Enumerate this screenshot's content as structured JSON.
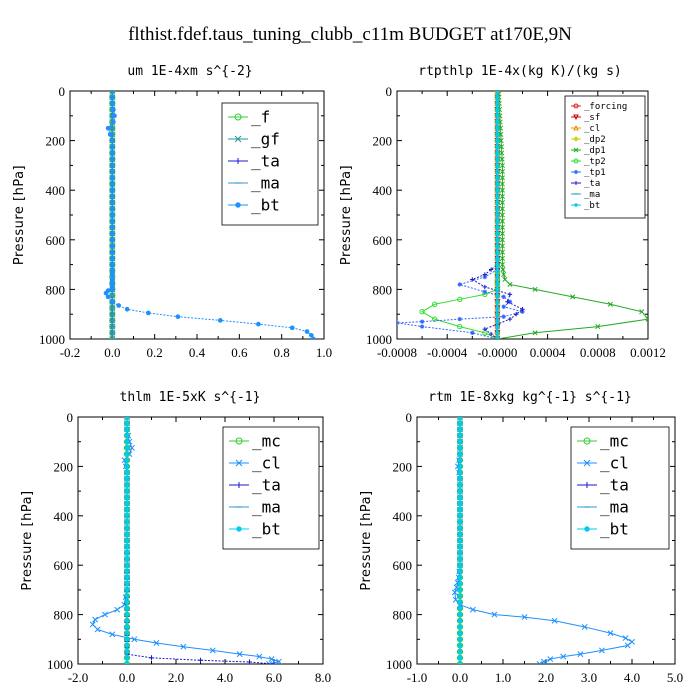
{
  "title": "flthist.fdef.taus_tuning_clubb_c11m  BUDGET at170E,9N",
  "chart_data": [
    {
      "type": "line",
      "title": "um  1E-4xm s^{-2}",
      "ylabel": "Pressure [hPa]",
      "xlim": [
        -0.2,
        1.0
      ],
      "ylim": [
        0,
        1000
      ],
      "xticks": [
        "-0.2",
        "0.0",
        "0.2",
        "0.4",
        "0.6",
        "0.8",
        "1.0"
      ],
      "xtick_values": [
        -0.2,
        0.0,
        0.2,
        0.4,
        0.6,
        0.8,
        1.0
      ],
      "yticks": [
        "0",
        "200",
        "400",
        "600",
        "800",
        "1000"
      ],
      "ytick_values": [
        0,
        200,
        400,
        600,
        800,
        1000
      ],
      "legend_position": "top-right",
      "series": [
        {
          "name": "_f",
          "color": "#33cc33",
          "marker": "circle",
          "x": [
            0.0,
            0.0,
            0.0,
            0.0,
            0.0,
            0.0,
            0.0
          ],
          "y": [
            0,
            200,
            400,
            600,
            800,
            900,
            1000
          ]
        },
        {
          "name": "_gf",
          "color": "#229999",
          "marker": "cross",
          "x": [
            0.0,
            0.0,
            0.0,
            0.0,
            0.0,
            0.0,
            0.0
          ],
          "y": [
            0,
            200,
            400,
            600,
            800,
            900,
            1000
          ]
        },
        {
          "name": "_ta",
          "color": "#1a1acc",
          "marker": "plus",
          "x": [
            0.0,
            0.0,
            0.0,
            0.0,
            0.0,
            0.0,
            0.0
          ],
          "y": [
            0,
            200,
            400,
            600,
            800,
            900,
            1000
          ]
        },
        {
          "name": "_ma",
          "color": "#3399cc",
          "marker": "dash",
          "x": [
            0.0,
            0.0,
            0.0,
            0.0,
            0.0,
            0.0,
            0.0
          ],
          "y": [
            0,
            200,
            400,
            600,
            800,
            900,
            1000
          ]
        },
        {
          "name": "_bt",
          "color": "#1e90ff",
          "marker": "dot",
          "x": [
            0.0,
            0.0,
            0.0,
            0.005,
            0.01,
            0.005,
            -0.02,
            -0.01,
            0.0,
            0.0,
            0.0,
            0.0,
            0.0,
            0.0,
            0.0,
            0.0,
            0.0,
            0.0,
            0.0,
            0.0,
            0.0,
            0.0,
            0.0,
            0.0,
            0.0,
            0.0,
            0.0,
            -0.02,
            -0.03,
            -0.02,
            0.0,
            0.03,
            0.07,
            0.17,
            0.31,
            0.51,
            0.69,
            0.85,
            0.92,
            0.94,
            0.95
          ],
          "y": [
            0,
            25,
            50,
            75,
            100,
            125,
            150,
            175,
            200,
            225,
            250,
            300,
            350,
            400,
            450,
            500,
            550,
            600,
            650,
            700,
            720,
            740,
            760,
            780,
            790,
            795,
            800,
            805,
            815,
            830,
            850,
            865,
            880,
            895,
            910,
            925,
            940,
            955,
            970,
            985,
            1000
          ]
        }
      ]
    },
    {
      "type": "line",
      "title": "rtpthlp  1E-4x(kg K)/(kg s)",
      "ylabel": "Pressure [hPa]",
      "xlim": [
        -0.0008,
        0.0012
      ],
      "ylim": [
        0,
        1000
      ],
      "xticks": [
        "-0.0008",
        "-0.0004",
        "-0.0000",
        "0.0004",
        "0.0008",
        "0.0012"
      ],
      "xtick_values": [
        -0.0008,
        -0.0004,
        0.0,
        0.0004,
        0.0008,
        0.0012
      ],
      "yticks": [
        "0",
        "200",
        "400",
        "600",
        "800",
        "1000"
      ],
      "ytick_values": [
        0,
        200,
        400,
        600,
        800,
        1000
      ],
      "legend_position": "top-right",
      "series": [
        {
          "name": "_forcing",
          "color": "#e02020",
          "marker": "circle",
          "x": [
            0.0,
            0.0
          ],
          "y": [
            0,
            1000
          ]
        },
        {
          "name": "_sf",
          "color": "#cc0000",
          "marker": "triangle-down",
          "x": [
            0.0,
            0.0
          ],
          "y": [
            0,
            1000
          ]
        },
        {
          "name": "_cl",
          "color": "#dd9900",
          "marker": "triangle-up",
          "x": [
            0.0,
            0.0
          ],
          "y": [
            0,
            1000
          ]
        },
        {
          "name": "_dp2",
          "color": "#cccc00",
          "marker": "diamond",
          "x": [
            0.0,
            0.0
          ],
          "y": [
            0,
            1000
          ]
        },
        {
          "name": "_dp1",
          "color": "#22aa22",
          "marker": "cross",
          "x": [
            1e-05,
            2e-05,
            3e-05,
            4e-05,
            4e-05,
            4e-05,
            4e-05,
            4e-05,
            4e-05,
            4e-05,
            5e-05,
            6e-05,
            0.0001,
            0.0003,
            0.0006,
            0.0009,
            0.00115,
            0.0012,
            0.0008,
            0.0003,
            0.0
          ],
          "y": [
            0,
            100,
            200,
            300,
            400,
            500,
            550,
            600,
            650,
            700,
            740,
            760,
            780,
            800,
            830,
            860,
            890,
            920,
            950,
            975,
            1000
          ]
        },
        {
          "name": "_tp2",
          "color": "#33dd33",
          "marker": "circle",
          "x": [
            0.0,
            0.0,
            0.0,
            0.0,
            0.0,
            0.0,
            -0.0001,
            -0.0003,
            -0.0005,
            -0.0006,
            -0.0005,
            -0.0003,
            -0.0001,
            0.0
          ],
          "y": [
            0,
            200,
            400,
            600,
            760,
            800,
            820,
            840,
            860,
            890,
            920,
            950,
            975,
            1000
          ]
        },
        {
          "name": "_tp1",
          "color": "#3366ff",
          "marker": "star",
          "x": [
            0.0,
            0.0,
            0.0,
            0.0,
            0.0,
            -0.0001,
            -0.0003,
            -0.0001,
            5e-05,
            0.0001,
            5e-05,
            0.0002,
            5e-05,
            -0.0003,
            -0.0006,
            -0.0008,
            -0.0006,
            -0.0002,
            0.0
          ],
          "y": [
            0,
            200,
            400,
            600,
            720,
            750,
            780,
            810,
            830,
            850,
            870,
            890,
            910,
            920,
            930,
            935,
            950,
            975,
            1000
          ]
        },
        {
          "name": "_ta",
          "color": "#1a1acc",
          "marker": "plus",
          "x": [
            0.0,
            0.0,
            0.0,
            0.0,
            -0.0001,
            -0.0002,
            -0.0001,
            0.0001,
            8e-05,
            0.0002,
            0.0001,
            -0.0001,
            0.0
          ],
          "y": [
            0,
            200,
            400,
            700,
            740,
            760,
            790,
            820,
            850,
            880,
            920,
            960,
            1000
          ]
        },
        {
          "name": "_ma",
          "color": "#3399cc",
          "marker": "dash",
          "x": [
            0.0,
            0.0
          ],
          "y": [
            0,
            1000
          ]
        },
        {
          "name": "_bt",
          "color": "#00ccee",
          "marker": "dot",
          "x": [
            0.0,
            0.0
          ],
          "y": [
            0,
            1000
          ]
        }
      ]
    },
    {
      "type": "line",
      "title": "thlm  1E-5xK s^{-1}",
      "ylabel": "Pressure [hPa]",
      "xlim": [
        -2.0,
        8.0
      ],
      "ylim": [
        0,
        1000
      ],
      "xticks": [
        "-2.0",
        "0.0",
        "2.0",
        "4.0",
        "6.0",
        "8.0"
      ],
      "xtick_values": [
        -2.0,
        0.0,
        2.0,
        4.0,
        6.0,
        8.0
      ],
      "yticks": [
        "0",
        "200",
        "400",
        "600",
        "800",
        "1000"
      ],
      "ytick_values": [
        0,
        200,
        400,
        600,
        800,
        1000
      ],
      "legend_position": "top-right",
      "series": [
        {
          "name": "_mc",
          "color": "#33cc33",
          "marker": "circle",
          "x": [
            0.0,
            0.0,
            0.0,
            0.0,
            0.0,
            0.0,
            0.0
          ],
          "y": [
            0,
            200,
            400,
            600,
            800,
            900,
            1000
          ]
        },
        {
          "name": "_cl",
          "color": "#1e90ff",
          "marker": "cross",
          "x": [
            0.0,
            0.0,
            0.0,
            0.1,
            0.2,
            0.1,
            -0.1,
            -0.05,
            0.0,
            0.0,
            0.0,
            0.0,
            0.0,
            0.0,
            0.0,
            0.0,
            0.0,
            0.0,
            -0.1,
            -0.4,
            -0.9,
            -1.3,
            -1.4,
            -1.2,
            -0.6,
            0.3,
            1.2,
            2.3,
            3.5,
            4.6,
            5.4,
            5.9,
            6.2,
            5.8
          ],
          "y": [
            0,
            25,
            50,
            100,
            125,
            150,
            175,
            200,
            225,
            250,
            300,
            350,
            400,
            450,
            500,
            550,
            600,
            700,
            760,
            780,
            800,
            820,
            840,
            860,
            880,
            900,
            915,
            930,
            945,
            960,
            970,
            980,
            990,
            1000
          ]
        },
        {
          "name": "_ta",
          "color": "#1a1acc",
          "marker": "plus",
          "x": [
            0.0,
            0.0,
            0.0,
            1.0,
            3.0,
            5.0,
            6.0
          ],
          "y": [
            0,
            400,
            960,
            975,
            985,
            992,
            1000
          ]
        },
        {
          "name": "_ma",
          "color": "#3399cc",
          "marker": "dash",
          "x": [
            0.0,
            0.0,
            0.0,
            0.0,
            0.0,
            0.0,
            0.0
          ],
          "y": [
            0,
            200,
            400,
            600,
            800,
            900,
            1000
          ]
        },
        {
          "name": "_bt",
          "color": "#00ccee",
          "marker": "dot",
          "x": [
            0.0,
            0.0,
            0.0,
            0.0,
            0.0,
            0.0,
            0.0
          ],
          "y": [
            0,
            200,
            400,
            600,
            800,
            900,
            1000
          ]
        }
      ]
    },
    {
      "type": "line",
      "title": "rtm  1E-8xkg kg^{-1} s^{-1}",
      "ylabel": "Pressure [hPa]",
      "xlim": [
        -1.0,
        5.0
      ],
      "ylim": [
        0,
        1000
      ],
      "xticks": [
        "-1.0",
        "0.0",
        "1.0",
        "2.0",
        "3.0",
        "4.0",
        "5.0"
      ],
      "xtick_values": [
        -1.0,
        0.0,
        1.0,
        2.0,
        3.0,
        4.0,
        5.0
      ],
      "yticks": [
        "0",
        "200",
        "400",
        "600",
        "800",
        "1000"
      ],
      "ytick_values": [
        0,
        200,
        400,
        600,
        800,
        1000
      ],
      "legend_position": "top-right",
      "series": [
        {
          "name": "_mc",
          "color": "#33cc33",
          "marker": "circle",
          "x": [
            0.0,
            0.0,
            0.0,
            0.0,
            0.0,
            0.0,
            0.0
          ],
          "y": [
            0,
            200,
            400,
            600,
            800,
            900,
            1000
          ]
        },
        {
          "name": "_cl",
          "color": "#1e90ff",
          "marker": "cross",
          "x": [
            0.0,
            0.0,
            0.0,
            0.0,
            -0.02,
            -0.05,
            -0.02,
            0.0,
            0.0,
            0.0,
            0.0,
            0.0,
            0.0,
            0.0,
            0.0,
            -0.03,
            -0.08,
            -0.12,
            -0.1,
            0.0,
            0.3,
            0.8,
            1.5,
            2.2,
            2.9,
            3.5,
            3.85,
            4.0,
            3.9,
            3.3,
            2.8,
            2.4,
            2.1,
            1.95,
            1.85
          ],
          "y": [
            0,
            50,
            100,
            150,
            175,
            200,
            225,
            250,
            300,
            350,
            400,
            450,
            500,
            550,
            600,
            650,
            690,
            710,
            740,
            760,
            780,
            800,
            810,
            825,
            850,
            875,
            895,
            910,
            925,
            945,
            960,
            970,
            980,
            990,
            1000
          ]
        },
        {
          "name": "_ta",
          "color": "#1a1acc",
          "marker": "plus",
          "x": [
            0.0,
            0.0,
            0.0,
            0.0,
            0.0
          ],
          "y": [
            0,
            300,
            600,
            900,
            1000
          ]
        },
        {
          "name": "_ma",
          "color": "#3399cc",
          "marker": "dash",
          "x": [
            0.0,
            0.0,
            0.0,
            0.0,
            0.0
          ],
          "y": [
            0,
            300,
            600,
            900,
            1000
          ]
        },
        {
          "name": "_bt",
          "color": "#00ccee",
          "marker": "dot",
          "x": [
            0.0,
            0.0,
            0.0,
            0.0,
            0.0
          ],
          "y": [
            0,
            300,
            600,
            900,
            1000
          ]
        }
      ]
    }
  ]
}
